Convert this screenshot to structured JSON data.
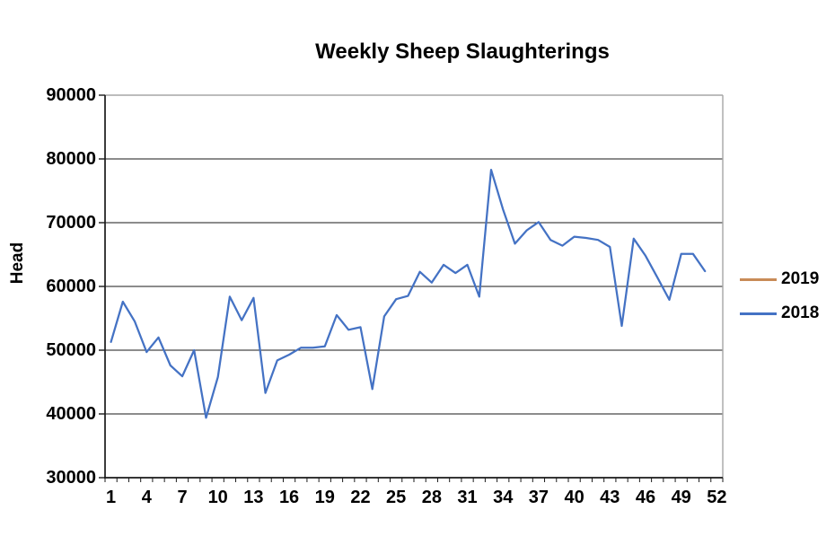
{
  "chart_data": {
    "type": "line",
    "title": "Weekly Sheep Slaughterings",
    "xlabel": "",
    "ylabel": "Head",
    "x_slots": 52,
    "x_tick_labels": [
      1,
      4,
      7,
      10,
      13,
      16,
      19,
      22,
      25,
      28,
      31,
      34,
      37,
      40,
      43,
      46,
      49,
      52
    ],
    "ylim": [
      30000,
      90000
    ],
    "y_tick_step": 10000,
    "grid": "horizontal",
    "legend_position": "right",
    "axis_color": "#1a1a1a",
    "gridline_color": "#1a1a1a",
    "border_color": "#a6a6a6",
    "series": [
      {
        "name": "2019",
        "color": "#C88B57",
        "weeks": [],
        "values": []
      },
      {
        "name": "2018",
        "color": "#4472C4",
        "weeks": [
          1,
          2,
          3,
          4,
          5,
          6,
          7,
          8,
          9,
          10,
          11,
          12,
          13,
          14,
          15,
          16,
          17,
          18,
          19,
          20,
          21,
          22,
          23,
          24,
          25,
          26,
          27,
          28,
          29,
          30,
          31,
          32,
          33,
          34,
          35,
          36,
          37,
          38,
          39,
          40,
          41,
          42,
          43,
          44,
          45,
          46,
          47,
          48,
          49,
          50,
          51
        ],
        "values": [
          51300,
          57600,
          54500,
          49700,
          52000,
          47600,
          45900,
          50000,
          39400,
          45800,
          58400,
          54700,
          58200,
          43300,
          48400,
          49300,
          50400,
          50400,
          50600,
          55500,
          53200,
          53600,
          43900,
          55300,
          58000,
          58500,
          62300,
          60600,
          63400,
          62100,
          63400,
          58400,
          78300,
          72100,
          66700,
          68800,
          70100,
          67300,
          66400,
          67800,
          67600,
          67300,
          66200,
          53800,
          67500,
          64800,
          61400,
          57900,
          65100,
          65100,
          62400
        ]
      }
    ]
  }
}
